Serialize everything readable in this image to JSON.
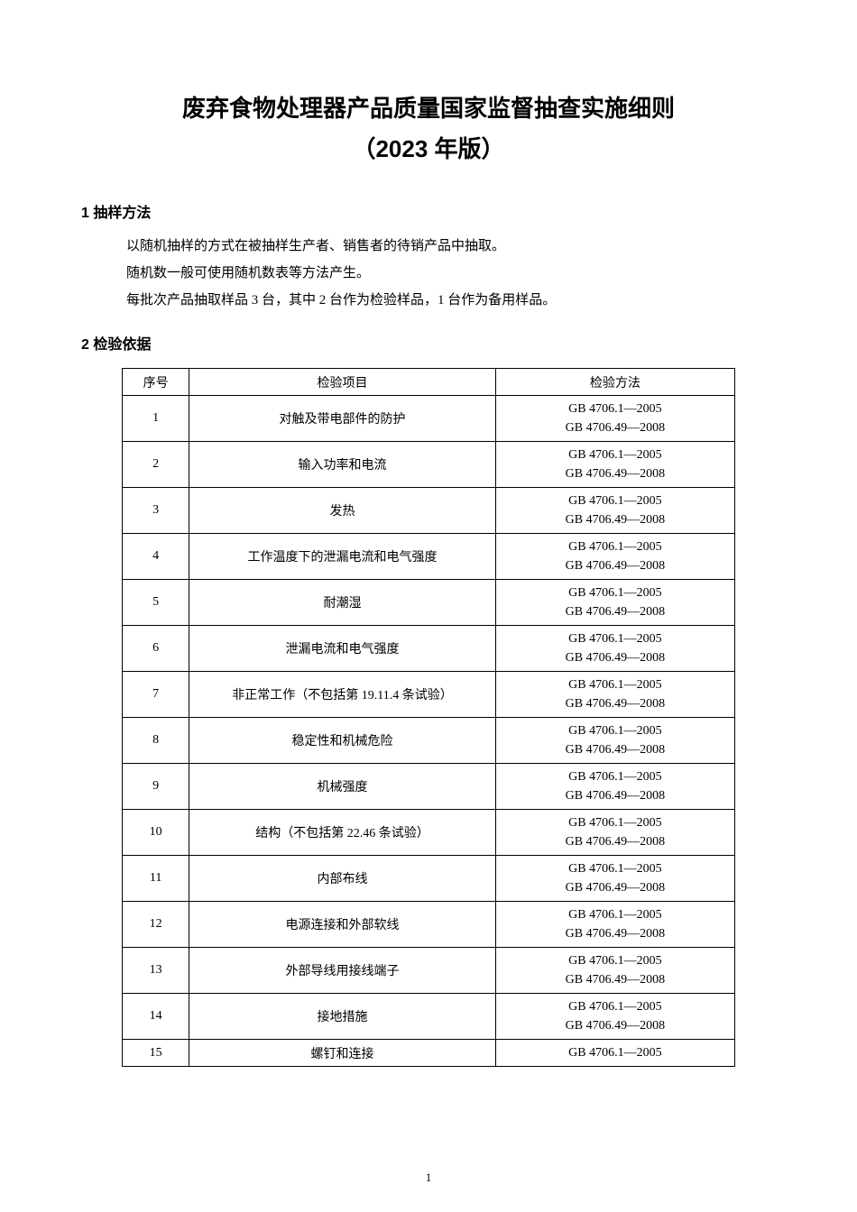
{
  "title": "废弃食物处理器产品质量国家监督抽查实施细则",
  "subtitle": "（2023 年版）",
  "section1": {
    "heading": "1 抽样方法",
    "paragraphs": [
      "以随机抽样的方式在被抽样生产者、销售者的待销产品中抽取。",
      "随机数一般可使用随机数表等方法产生。",
      "每批次产品抽取样品 3 台，其中 2 台作为检验样品，1 台作为备用样品。"
    ]
  },
  "section2": {
    "heading": "2 检验依据"
  },
  "table": {
    "headers": {
      "seq": "序号",
      "item": "检验项目",
      "method": "检验方法"
    },
    "method_std1": "GB 4706.1—2005",
    "method_std2": "GB 4706.49—2008",
    "rows": [
      {
        "seq": "1",
        "item": "对触及带电部件的防护",
        "dual": true
      },
      {
        "seq": "2",
        "item": "输入功率和电流",
        "dual": true
      },
      {
        "seq": "3",
        "item": "发热",
        "dual": true
      },
      {
        "seq": "4",
        "item": "工作温度下的泄漏电流和电气强度",
        "dual": true
      },
      {
        "seq": "5",
        "item": "耐潮湿",
        "dual": true
      },
      {
        "seq": "6",
        "item": "泄漏电流和电气强度",
        "dual": true
      },
      {
        "seq": "7",
        "item": "非正常工作（不包括第 19.11.4 条试验）",
        "dual": true
      },
      {
        "seq": "8",
        "item": "稳定性和机械危险",
        "dual": true
      },
      {
        "seq": "9",
        "item": "机械强度",
        "dual": true
      },
      {
        "seq": "10",
        "item": "结构（不包括第 22.46 条试验）",
        "dual": true
      },
      {
        "seq": "11",
        "item": "内部布线",
        "dual": true
      },
      {
        "seq": "12",
        "item": "电源连接和外部软线",
        "dual": true
      },
      {
        "seq": "13",
        "item": "外部导线用接线端子",
        "dual": true
      },
      {
        "seq": "14",
        "item": "接地措施",
        "dual": true
      },
      {
        "seq": "15",
        "item": "螺钉和连接",
        "dual": false
      }
    ]
  },
  "page_number": "1"
}
